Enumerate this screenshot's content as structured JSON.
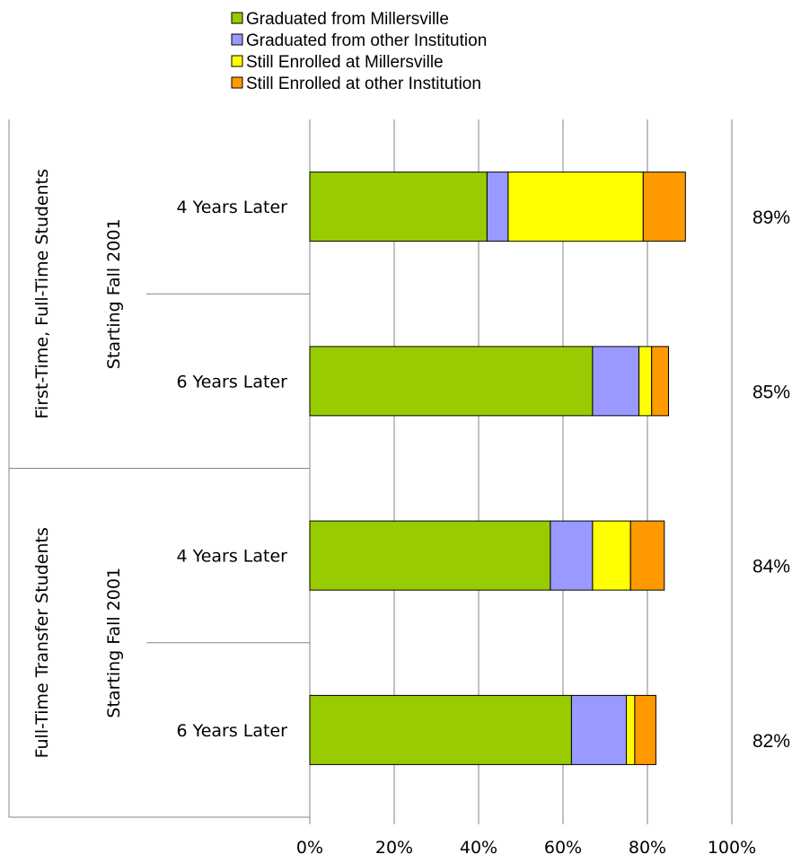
{
  "chart_data": {
    "type": "bar",
    "orientation": "horizontal",
    "stacked": true,
    "groups": [
      {
        "label": "First-Time, Full-Time Students",
        "sublabel": "Starting Fall 2001"
      },
      {
        "label": "Full-Time Transfer Students",
        "sublabel": "Starting Fall 2001"
      }
    ],
    "categories": [
      "4 Years Later",
      "6 Years Later",
      "4 Years Later",
      "6 Years Later"
    ],
    "category_group": [
      0,
      0,
      1,
      1
    ],
    "series": [
      {
        "name": "Graduated from Millersville",
        "color": "#99cc00",
        "values": [
          42,
          67,
          57,
          62
        ]
      },
      {
        "name": "Graduated from other Institution",
        "color": "#9999ff",
        "values": [
          5,
          11,
          10,
          13
        ]
      },
      {
        "name": "Still Enrolled at Millersville",
        "color": "#ffff00",
        "values": [
          32,
          3,
          9,
          2
        ]
      },
      {
        "name": "Still Enrolled at other Institution",
        "color": "#ff9900",
        "values": [
          10,
          4,
          8,
          5
        ]
      }
    ],
    "totals": [
      "89%",
      "85%",
      "84%",
      "82%"
    ],
    "xlim": [
      0,
      100
    ],
    "xticks": [
      "0%",
      "20%",
      "40%",
      "60%",
      "80%",
      "100%"
    ],
    "grid": true,
    "legend_position": "top"
  }
}
